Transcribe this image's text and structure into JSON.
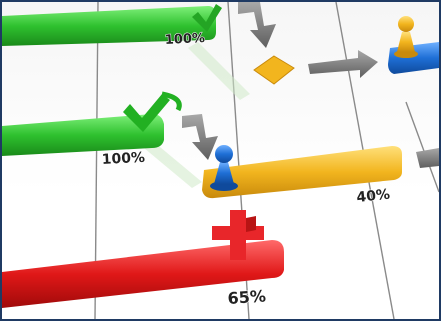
{
  "bars": [
    {
      "name": "green-top",
      "percent_label": "100%",
      "progress": 1.0,
      "color": "#2fc12f"
    },
    {
      "name": "green-mid",
      "percent_label": "100%",
      "progress": 1.0,
      "color": "#2fc12f"
    },
    {
      "name": "yellow",
      "percent_label": "40%",
      "progress": 0.4,
      "color": "#f2b51e"
    },
    {
      "name": "red",
      "percent_label": "65%",
      "progress": 0.65,
      "color": "#e01818"
    }
  ],
  "colors": {
    "green": "#2fc12f",
    "yellow": "#f2b51e",
    "red": "#e01818",
    "blue": "#1f6fd6",
    "arrow": "#7a7a7a",
    "gridline": "#8a8a8a",
    "frame": "#1f3a63"
  },
  "icons": [
    "checkmark-icon",
    "cross-icon",
    "blue-pawn-icon",
    "yellow-pawn-icon",
    "diamond-icon",
    "arrow-icon"
  ]
}
